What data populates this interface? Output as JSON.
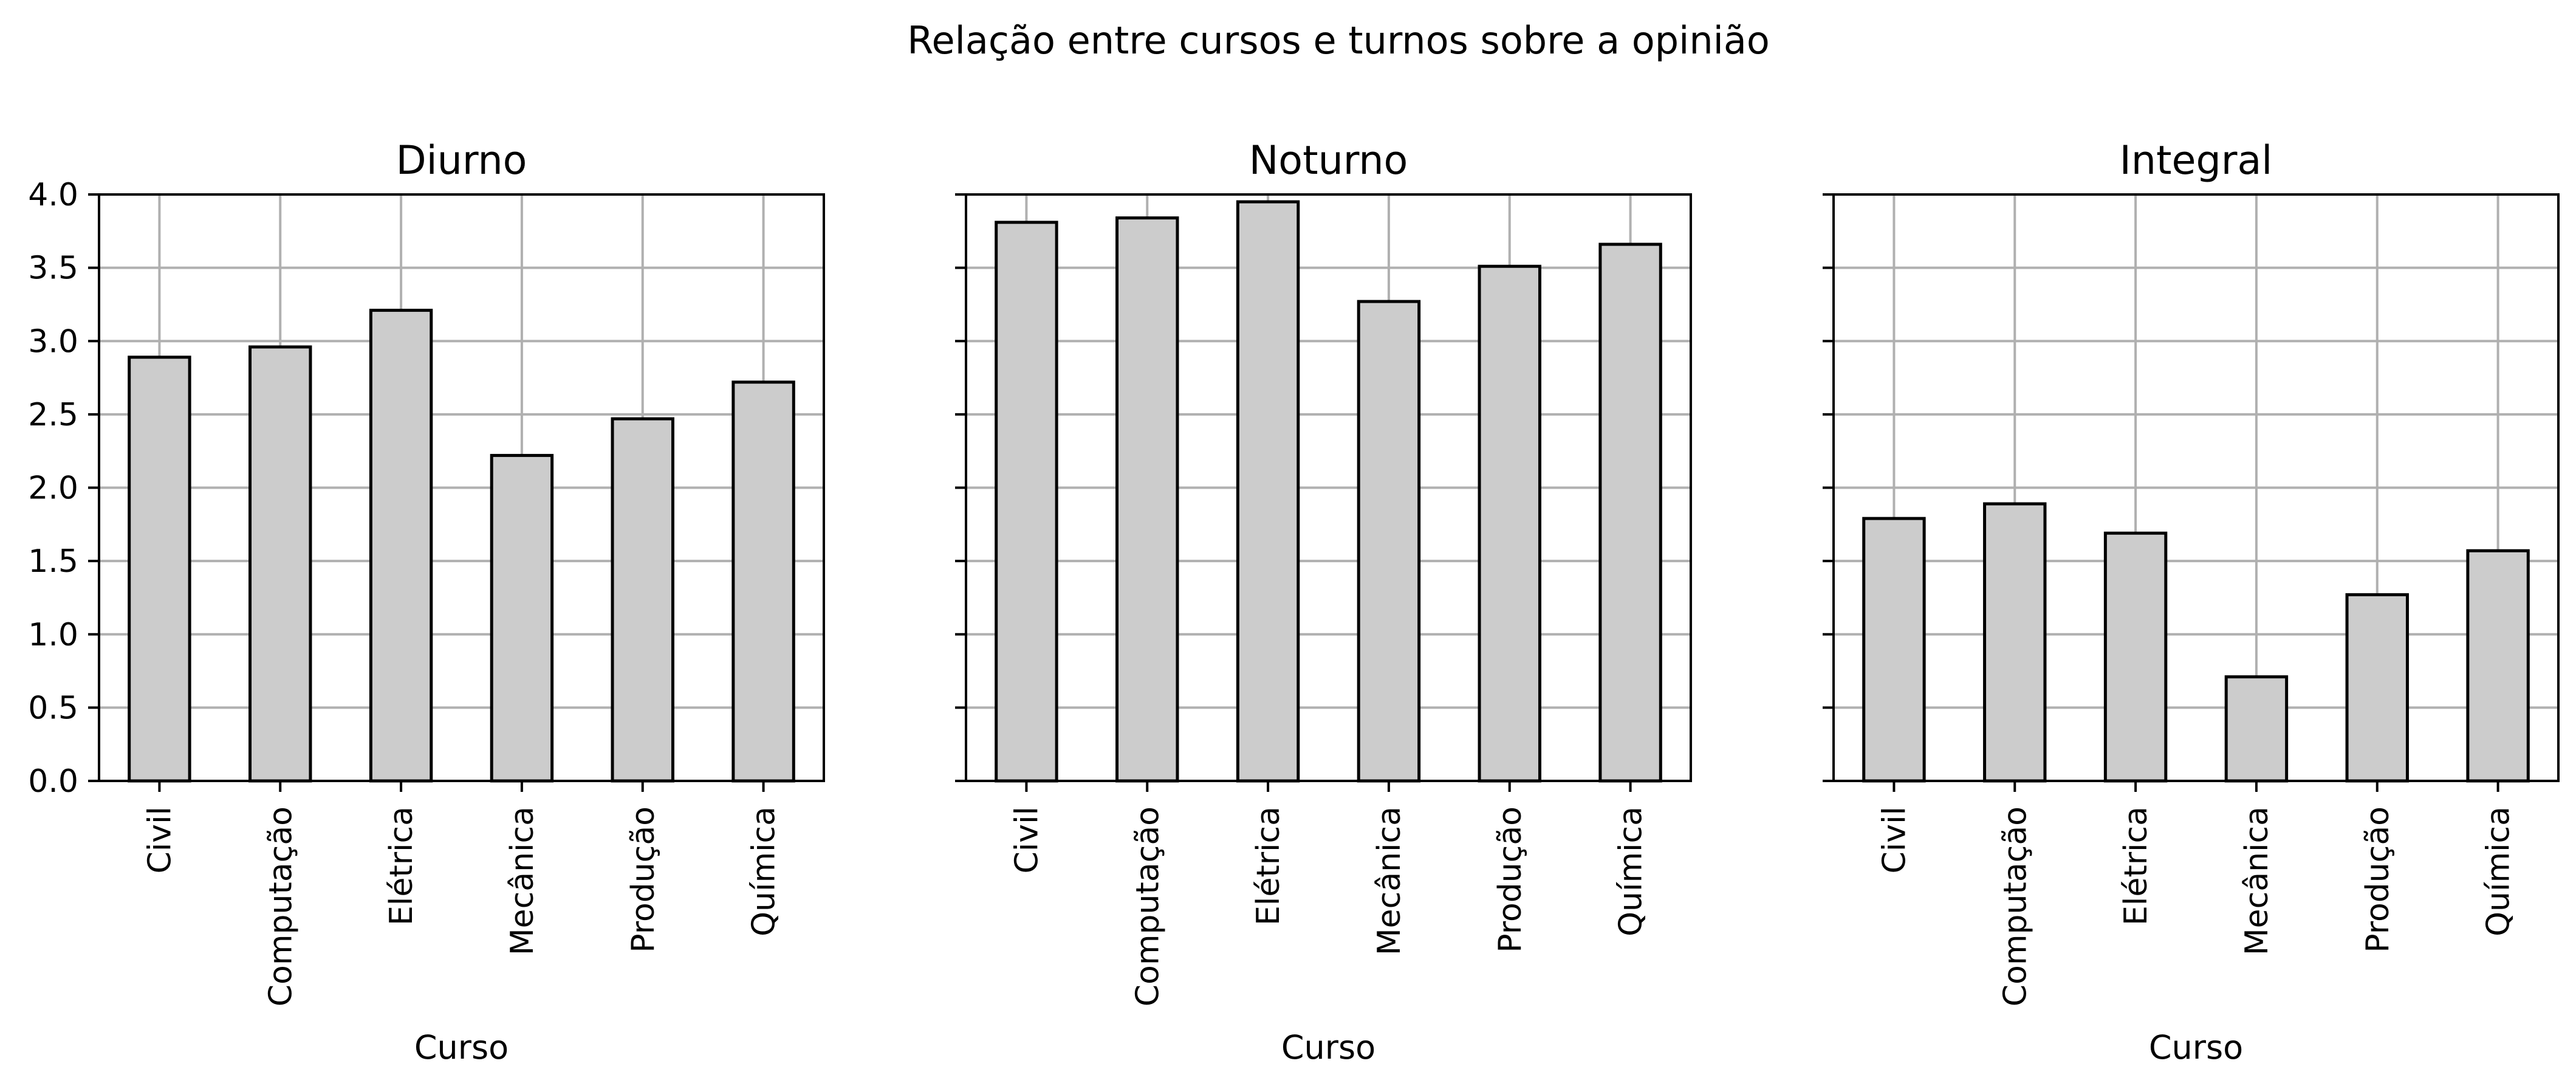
{
  "chart_data": {
    "type": "bar",
    "title": "Relação entre cursos e turnos sobre a opinião",
    "bar_color": "#cccccc",
    "edge_color": "#000000",
    "grid_color": "#b0b0b0",
    "grid": true,
    "ylim": [
      0,
      4.0
    ],
    "yticks": [
      "0.0",
      "0.5",
      "1.0",
      "1.5",
      "2.0",
      "2.5",
      "3.0",
      "3.5",
      "4.0"
    ],
    "categories": [
      "Civil",
      "Computação",
      "Elétrica",
      "Mecânica",
      "Produção",
      "Química"
    ],
    "panels": [
      {
        "title": "Diurno",
        "xlabel": "Curso",
        "values": [
          2.89,
          2.96,
          3.21,
          2.22,
          2.47,
          2.72
        ]
      },
      {
        "title": "Noturno",
        "xlabel": "Curso",
        "values": [
          3.81,
          3.84,
          3.95,
          3.27,
          3.51,
          3.66
        ]
      },
      {
        "title": "Integral",
        "xlabel": "Curso",
        "values": [
          1.79,
          1.89,
          1.69,
          0.71,
          1.27,
          1.57
        ]
      }
    ]
  }
}
